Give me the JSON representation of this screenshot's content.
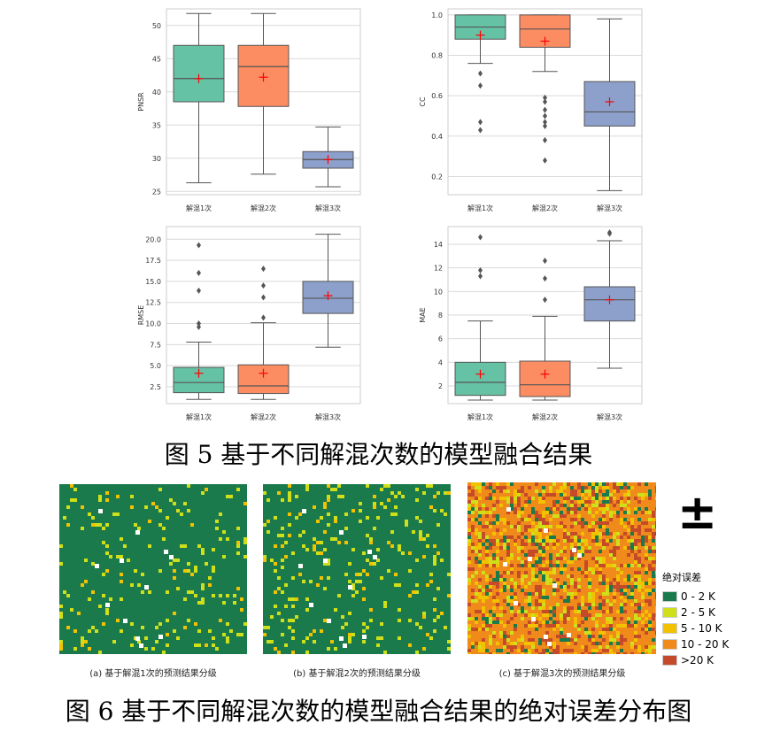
{
  "figure5": {
    "title": "图 5  基于不同解混次数的模型融合结果"
  },
  "figure6": {
    "title": "图 6  基于不同解混次数的模型融合结果的绝对误差分布图"
  },
  "colors": {
    "series": [
      "#66c2a5",
      "#fc8d62",
      "#8da0cb"
    ],
    "mean_marker": "#ff0000",
    "whisker": "#555555",
    "grid": "#d9d9d9",
    "map_bg": "#1a6b3c"
  },
  "chart_data": [
    {
      "type": "box",
      "ylabel": "PNSR",
      "ylim": [
        24.5,
        52.5
      ],
      "yticks": [
        25,
        30,
        35,
        40,
        45,
        50
      ],
      "tick_decimals": 0,
      "categories": [
        "解混1次",
        "解混2次",
        "解混3次"
      ],
      "boxes": [
        {
          "min": 26.3,
          "q1": 38.5,
          "median": 42.0,
          "q3": 47.0,
          "max": 51.8,
          "mean": 42.0,
          "outliers": []
        },
        {
          "min": 27.6,
          "q1": 37.8,
          "median": 43.8,
          "q3": 47.0,
          "max": 51.8,
          "mean": 42.2,
          "outliers": []
        },
        {
          "min": 25.7,
          "q1": 28.5,
          "median": 29.8,
          "q3": 31.0,
          "max": 34.7,
          "mean": 29.8,
          "outliers": []
        }
      ]
    },
    {
      "type": "box",
      "ylabel": "CC",
      "ylim": [
        0.11,
        1.03
      ],
      "yticks": [
        0.2,
        0.4,
        0.6,
        0.8,
        1.0
      ],
      "tick_decimals": 1,
      "categories": [
        "解混1次",
        "解混2次",
        "解混3次"
      ],
      "boxes": [
        {
          "min": 0.76,
          "q1": 0.88,
          "median": 0.94,
          "q3": 1.0,
          "max": 1.0,
          "mean": 0.9,
          "outliers": [
            0.71,
            0.65,
            0.47,
            0.43
          ]
        },
        {
          "min": 0.72,
          "q1": 0.84,
          "median": 0.93,
          "q3": 1.0,
          "max": 1.0,
          "mean": 0.87,
          "outliers": [
            0.59,
            0.57,
            0.53,
            0.5,
            0.47,
            0.45,
            0.38,
            0.28
          ]
        },
        {
          "min": 0.13,
          "q1": 0.45,
          "median": 0.52,
          "q3": 0.67,
          "max": 0.98,
          "mean": 0.57,
          "outliers": []
        }
      ]
    },
    {
      "type": "box",
      "ylabel": "RMSE",
      "ylim": [
        0.5,
        21.5
      ],
      "yticks": [
        2.5,
        5.0,
        7.5,
        10.0,
        12.5,
        15.0,
        17.5,
        20.0
      ],
      "tick_decimals": 1,
      "categories": [
        "解混1次",
        "解混2次",
        "解混3次"
      ],
      "boxes": [
        {
          "min": 1.0,
          "q1": 1.8,
          "median": 3.0,
          "q3": 4.8,
          "max": 7.8,
          "mean": 4.1,
          "outliers": [
            19.3,
            16.0,
            13.9,
            10.0,
            9.6
          ]
        },
        {
          "min": 1.0,
          "q1": 1.7,
          "median": 2.6,
          "q3": 5.1,
          "max": 10.1,
          "mean": 4.1,
          "outliers": [
            16.5,
            14.5,
            13.1,
            10.7
          ]
        },
        {
          "min": 7.2,
          "q1": 11.2,
          "median": 13.0,
          "q3": 15.0,
          "max": 20.6,
          "mean": 13.3,
          "outliers": []
        }
      ]
    },
    {
      "type": "box",
      "ylabel": "MAE",
      "ylim": [
        0.5,
        15.5
      ],
      "yticks": [
        2,
        4,
        6,
        8,
        10,
        12,
        14
      ],
      "tick_decimals": 0,
      "categories": [
        "解混1次",
        "解混2次",
        "解混3次"
      ],
      "boxes": [
        {
          "min": 0.8,
          "q1": 1.2,
          "median": 2.3,
          "q3": 4.0,
          "max": 7.5,
          "mean": 3.0,
          "outliers": [
            14.6,
            11.8,
            11.3
          ]
        },
        {
          "min": 0.8,
          "q1": 1.1,
          "median": 2.1,
          "q3": 4.1,
          "max": 7.9,
          "mean": 3.0,
          "outliers": [
            12.6,
            11.1,
            9.3
          ]
        },
        {
          "min": 3.5,
          "q1": 7.5,
          "median": 9.3,
          "q3": 10.4,
          "max": 14.3,
          "mean": 9.3,
          "outliers": [
            14.9,
            15.0
          ]
        }
      ]
    }
  ],
  "maps": [
    {
      "caption": "(a)  基于解混1次的预测结果分级",
      "class_mix": [
        0.92,
        0.06,
        0.02,
        0.0,
        0.0
      ]
    },
    {
      "caption": "(b)  基于解混2次的预测结果分级",
      "class_mix": [
        0.9,
        0.07,
        0.03,
        0.0,
        0.0
      ]
    },
    {
      "caption": "(c)  基于解混3次的预测结果分级",
      "class_mix": [
        0.08,
        0.1,
        0.12,
        0.52,
        0.18
      ]
    }
  ],
  "north_arrow": {
    "symbol": "±"
  },
  "legend": {
    "title": "绝对误差",
    "items": [
      {
        "label": "0 - 2 K",
        "color": "#1a7a4c"
      },
      {
        "label": "2 - 5 K",
        "color": "#cfe01a"
      },
      {
        "label": "5 - 10 K",
        "color": "#f2c200"
      },
      {
        "label": "10 - 20 K",
        "color": "#f08a1a"
      },
      {
        "label": ">20 K",
        "color": "#c44a2a"
      }
    ]
  }
}
